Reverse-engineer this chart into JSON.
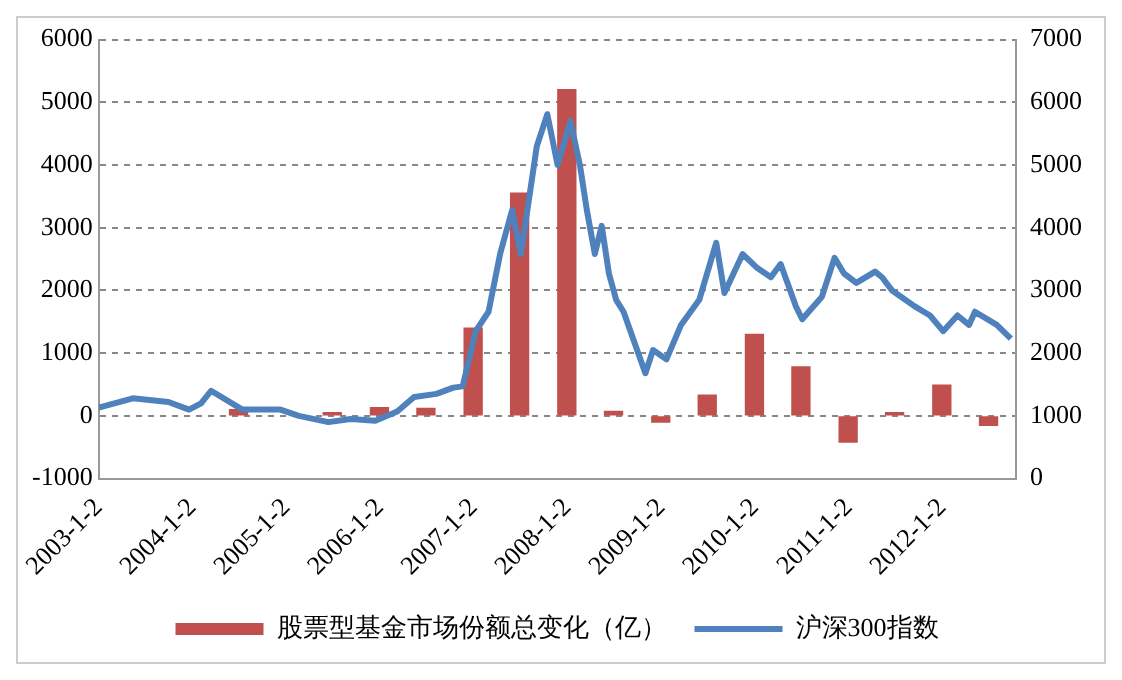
{
  "chart_data": {
    "type": "bar",
    "legend": "bottom",
    "grid": "y",
    "x": [
      "2004-06-30",
      "2005-06-30",
      "2005-12-31",
      "2006-06-30",
      "2006-12-31",
      "2007-06-30",
      "2007-12-31",
      "2008-06-30",
      "2008-12-31",
      "2009-06-30",
      "2009-12-31",
      "2010-06-30",
      "2010-12-31",
      "2011-06-30",
      "2011-12-31",
      "2012-06-30"
    ],
    "xlim": [
      "2003-01-02",
      "2012-10-15"
    ],
    "xticks": [
      {
        "value": "2003-01-02",
        "label": "2003-1-2"
      },
      {
        "value": "2004-01-02",
        "label": "2004-1-2"
      },
      {
        "value": "2005-01-02",
        "label": "2005-1-2"
      },
      {
        "value": "2006-01-02",
        "label": "2006-1-2"
      },
      {
        "value": "2007-01-02",
        "label": "2007-1-2"
      },
      {
        "value": "2008-01-02",
        "label": "2008-1-2"
      },
      {
        "value": "2009-01-02",
        "label": "2009-1-2"
      },
      {
        "value": "2010-01-02",
        "label": "2010-1-2"
      },
      {
        "value": "2011-01-02",
        "label": "2011-1-2"
      },
      {
        "value": "2012-01-02",
        "label": "2012-1-2"
      }
    ],
    "ylim": [
      -1000,
      6000
    ],
    "yticks": [
      -1000,
      0,
      1000,
      2000,
      3000,
      4000,
      5000,
      6000
    ],
    "y2lim": [
      0,
      7000
    ],
    "y2ticks": [
      0,
      1000,
      2000,
      3000,
      4000,
      5000,
      6000,
      7000
    ],
    "series": [
      {
        "name": "股票型基金市场份额总变化（亿）",
        "color": "#c0504d",
        "values": [
          100,
          50,
          130,
          120,
          1400,
          3550,
          5200,
          70,
          -100,
          330,
          1300,
          780,
          -420,
          50,
          490,
          -150
        ]
      },
      {
        "name": "沪深300指数",
        "type": "line",
        "axis": "y2",
        "color": "#4f81bd",
        "x": [
          "2003-01-02",
          "2003-05-15",
          "2003-10-01",
          "2003-12-20",
          "2004-02-05",
          "2004-03-15",
          "2004-07-15",
          "2004-12-10",
          "2005-02-20",
          "2005-06-15",
          "2005-09-10",
          "2005-12-15",
          "2006-03-10",
          "2006-05-15",
          "2006-08-10",
          "2006-10-15",
          "2006-11-20",
          "2007-01-10",
          "2007-03-01",
          "2007-04-15",
          "2007-06-01",
          "2007-07-05",
          "2007-09-05",
          "2007-10-16",
          "2007-11-25",
          "2008-01-14",
          "2008-02-20",
          "2008-03-18",
          "2008-04-18",
          "2008-05-15",
          "2008-06-12",
          "2008-07-10",
          "2008-08-08",
          "2008-11-01",
          "2008-12-01",
          "2009-01-22",
          "2009-03-20",
          "2009-05-30",
          "2009-08-04",
          "2009-09-05",
          "2009-11-15",
          "2010-01-10",
          "2010-03-05",
          "2010-04-12",
          "2010-06-10",
          "2010-07-05",
          "2010-09-20",
          "2010-11-08",
          "2010-12-15",
          "2011-02-01",
          "2011-04-15",
          "2011-05-12",
          "2011-06-20",
          "2011-09-15",
          "2011-11-15",
          "2012-01-05",
          "2012-03-01",
          "2012-04-15",
          "2012-05-08",
          "2012-08-01",
          "2012-09-25"
        ],
        "values": [
          1130,
          1280,
          1220,
          1100,
          1200,
          1400,
          1100,
          1100,
          1000,
          900,
          950,
          920,
          1070,
          1300,
          1350,
          1450,
          1470,
          2350,
          2660,
          3580,
          4280,
          3580,
          5300,
          5810,
          5000,
          5700,
          5000,
          4280,
          3580,
          4030,
          3270,
          2850,
          2660,
          1680,
          2050,
          1900,
          2450,
          2850,
          3760,
          2960,
          3580,
          3360,
          3210,
          3420,
          2750,
          2540,
          2900,
          3520,
          3270,
          3120,
          3300,
          3210,
          3000,
          2750,
          2600,
          2350,
          2600,
          2450,
          2660,
          2450,
          2230
        ]
      }
    ]
  }
}
